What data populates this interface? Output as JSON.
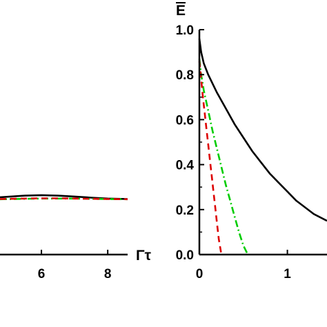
{
  "chart_data": [
    {
      "type": "line",
      "panel": "left",
      "title": "",
      "xlabel": "Γτ",
      "ylabel": "",
      "xlim": [
        4.75,
        8.6
      ],
      "ylim": [
        0,
        1.0
      ],
      "x_ticks": [
        "6",
        "8"
      ],
      "y_ticks": [],
      "grid": false,
      "series": [
        {
          "color": "#000000",
          "style": "solid",
          "x": [
            4.75,
            5.5,
            6.0,
            6.5,
            7.0,
            7.5,
            8.0,
            8.6
          ],
          "y": [
            0.255,
            0.262,
            0.264,
            0.262,
            0.258,
            0.253,
            0.249,
            0.247
          ]
        },
        {
          "color": "#00cc00",
          "style": "dashdot",
          "x": [
            4.75,
            5.5,
            6.0,
            6.5,
            7.0,
            7.5,
            8.0,
            8.6
          ],
          "y": [
            0.246,
            0.248,
            0.249,
            0.249,
            0.249,
            0.248,
            0.247,
            0.246
          ]
        },
        {
          "color": "#dd0000",
          "style": "dashed",
          "x": [
            4.75,
            5.5,
            6.0,
            6.5,
            7.0,
            7.5,
            8.0,
            8.6
          ],
          "y": [
            0.247,
            0.249,
            0.25,
            0.25,
            0.249,
            0.248,
            0.247,
            0.246
          ]
        }
      ]
    },
    {
      "type": "line",
      "panel": "right",
      "title": "",
      "xlabel": "",
      "ylabel": "E",
      "xlim": [
        0,
        1.45
      ],
      "ylim": [
        0,
        1.0
      ],
      "x_ticks": [
        "0",
        "1"
      ],
      "y_ticks": [
        "0.0",
        "0.2",
        "0.4",
        "0.6",
        "0.8",
        "1.0"
      ],
      "grid": false,
      "series": [
        {
          "color": "#000000",
          "style": "solid",
          "x": [
            0,
            0.02,
            0.05,
            0.1,
            0.2,
            0.3,
            0.4,
            0.5,
            0.6,
            0.7,
            0.8,
            0.9,
            1.0,
            1.1,
            1.2,
            1.3,
            1.45
          ],
          "y": [
            0.96,
            0.9,
            0.85,
            0.8,
            0.72,
            0.65,
            0.58,
            0.52,
            0.46,
            0.41,
            0.36,
            0.32,
            0.28,
            0.24,
            0.21,
            0.18,
            0.15
          ]
        },
        {
          "color": "#00cc00",
          "style": "dashdot",
          "x": [
            0,
            0.02,
            0.05,
            0.1,
            0.15,
            0.2,
            0.25,
            0.3,
            0.35,
            0.4,
            0.45,
            0.5,
            0.55
          ],
          "y": [
            0.87,
            0.8,
            0.73,
            0.64,
            0.55,
            0.47,
            0.39,
            0.31,
            0.24,
            0.17,
            0.1,
            0.04,
            0.0
          ]
        },
        {
          "color": "#dd0000",
          "style": "dashed",
          "x": [
            0,
            0.02,
            0.04,
            0.06,
            0.08,
            0.1,
            0.12,
            0.14,
            0.16,
            0.18,
            0.2,
            0.22,
            0.25
          ],
          "y": [
            0.86,
            0.78,
            0.7,
            0.63,
            0.56,
            0.49,
            0.42,
            0.35,
            0.28,
            0.21,
            0.14,
            0.07,
            0.0
          ]
        }
      ]
    }
  ]
}
